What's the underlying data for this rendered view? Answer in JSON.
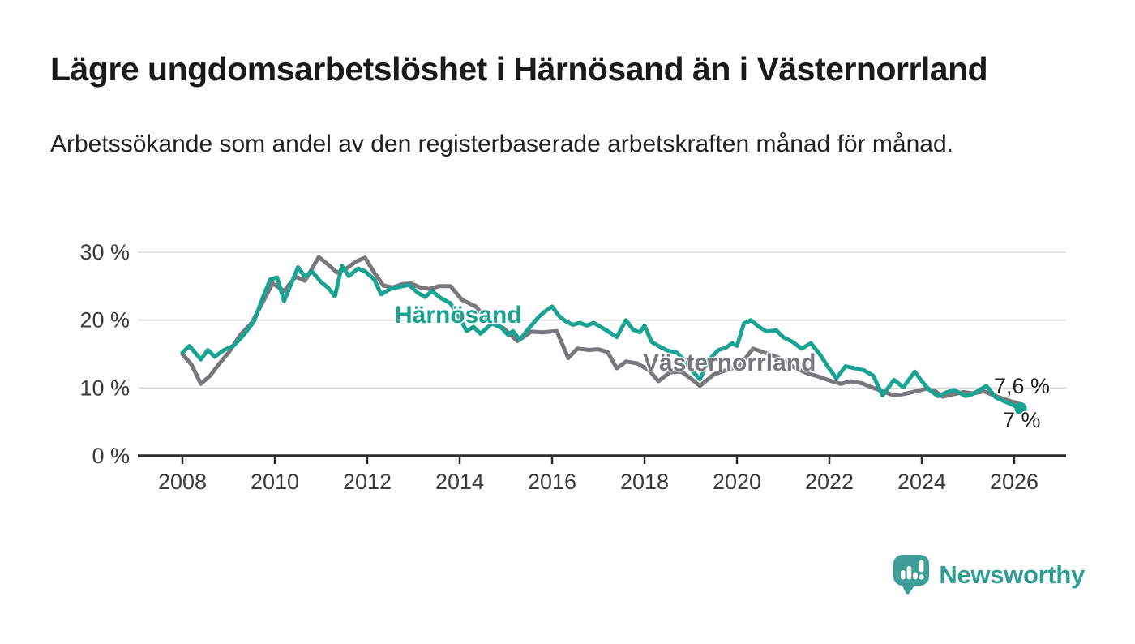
{
  "title": "Lägre ungdomsarbetslöshet i Härnösand än i Västernorrland",
  "subtitle": "Arbetssökande som andel av den registerbaserade arbetskraften månad för månad.",
  "branding": {
    "name": "Newsworthy"
  },
  "colors": {
    "harnosand": "#1aa392",
    "vasternorrland": "#78787c",
    "axis": "#2d2d2d",
    "grid": "#d8d8d8",
    "tick_text": "#3a3a3a",
    "logo_bubble": "#3f9e97",
    "logo_text": "#2d9c92"
  },
  "chart_data": {
    "type": "line",
    "title": "Lägre ungdomsarbetslöshet i Härnösand än i Västernorrland",
    "subtitle": "Arbetssökande som andel av den registerbaserade arbetskraften månad för månad.",
    "unit": "%",
    "grid": "horizontal",
    "legend_position": "inline-labels",
    "x_range": [
      2007.05,
      2027.1
    ],
    "y_range": [
      0,
      30
    ],
    "x_ticks": [
      "2008",
      "2010",
      "2012",
      "2014",
      "2016",
      "2018",
      "2020",
      "2022",
      "2024",
      "2026"
    ],
    "x_tick_values": [
      2008,
      2010,
      2012,
      2014,
      2016,
      2018,
      2020,
      2022,
      2024,
      2026
    ],
    "y_ticks": [
      "0 %",
      "10 %",
      "20 %",
      "30 %"
    ],
    "y_tick_values": [
      0,
      10,
      20,
      30
    ],
    "series": [
      {
        "name": "Härnösand",
        "label": "Härnösand",
        "color": "#1aa392",
        "end_label": "7 %",
        "end_value": 7.0,
        "end_dot": true,
        "points": [
          [
            2008.0,
            15.2
          ],
          [
            2008.15,
            16.2
          ],
          [
            2008.4,
            14.2
          ],
          [
            2008.55,
            15.6
          ],
          [
            2008.7,
            14.6
          ],
          [
            2008.9,
            15.6
          ],
          [
            2009.1,
            16.2
          ],
          [
            2009.3,
            17.6
          ],
          [
            2009.55,
            19.8
          ],
          [
            2009.75,
            23.5
          ],
          [
            2009.9,
            26.0
          ],
          [
            2010.05,
            26.3
          ],
          [
            2010.2,
            22.8
          ],
          [
            2010.5,
            27.8
          ],
          [
            2010.65,
            26.4
          ],
          [
            2010.8,
            27.2
          ],
          [
            2011.0,
            25.6
          ],
          [
            2011.15,
            24.8
          ],
          [
            2011.3,
            23.5
          ],
          [
            2011.45,
            28.0
          ],
          [
            2011.6,
            26.5
          ],
          [
            2011.8,
            27.6
          ],
          [
            2011.95,
            27.2
          ],
          [
            2012.15,
            26.0
          ],
          [
            2012.3,
            23.8
          ],
          [
            2012.5,
            24.6
          ],
          [
            2012.7,
            24.9
          ],
          [
            2012.9,
            25.2
          ],
          [
            2013.1,
            24.0
          ],
          [
            2013.25,
            23.4
          ],
          [
            2013.4,
            24.3
          ],
          [
            2013.6,
            23.2
          ],
          [
            2013.8,
            22.5
          ],
          [
            2014.0,
            20.3
          ],
          [
            2014.15,
            18.4
          ],
          [
            2014.3,
            19.0
          ],
          [
            2014.45,
            18.0
          ],
          [
            2014.7,
            19.5
          ],
          [
            2014.9,
            18.9
          ],
          [
            2015.05,
            17.8
          ],
          [
            2015.15,
            18.4
          ],
          [
            2015.3,
            17.1
          ],
          [
            2015.5,
            18.8
          ],
          [
            2015.7,
            20.4
          ],
          [
            2015.85,
            21.3
          ],
          [
            2016.0,
            22.0
          ],
          [
            2016.15,
            20.6
          ],
          [
            2016.3,
            19.8
          ],
          [
            2016.45,
            19.3
          ],
          [
            2016.6,
            19.6
          ],
          [
            2016.75,
            19.2
          ],
          [
            2016.9,
            19.6
          ],
          [
            2017.05,
            19.0
          ],
          [
            2017.2,
            18.4
          ],
          [
            2017.4,
            17.5
          ],
          [
            2017.6,
            20.0
          ],
          [
            2017.75,
            18.6
          ],
          [
            2017.9,
            18.2
          ],
          [
            2018.0,
            19.2
          ],
          [
            2018.15,
            16.8
          ],
          [
            2018.3,
            16.2
          ],
          [
            2018.5,
            15.5
          ],
          [
            2018.7,
            15.2
          ],
          [
            2018.9,
            13.8
          ],
          [
            2019.05,
            12.4
          ],
          [
            2019.2,
            11.3
          ],
          [
            2019.4,
            14.2
          ],
          [
            2019.6,
            15.6
          ],
          [
            2019.75,
            15.9
          ],
          [
            2019.9,
            16.6
          ],
          [
            2020.0,
            16.2
          ],
          [
            2020.15,
            19.5
          ],
          [
            2020.3,
            20.0
          ],
          [
            2020.5,
            18.9
          ],
          [
            2020.65,
            18.3
          ],
          [
            2020.85,
            18.5
          ],
          [
            2021.0,
            17.5
          ],
          [
            2021.2,
            16.8
          ],
          [
            2021.4,
            15.8
          ],
          [
            2021.6,
            16.6
          ],
          [
            2021.8,
            14.9
          ],
          [
            2021.95,
            13.3
          ],
          [
            2022.15,
            11.4
          ],
          [
            2022.35,
            13.2
          ],
          [
            2022.55,
            12.9
          ],
          [
            2022.75,
            12.6
          ],
          [
            2022.95,
            11.8
          ],
          [
            2023.15,
            8.9
          ],
          [
            2023.4,
            11.2
          ],
          [
            2023.6,
            10.1
          ],
          [
            2023.85,
            12.4
          ],
          [
            2024.0,
            11.0
          ],
          [
            2024.15,
            9.8
          ],
          [
            2024.35,
            8.8
          ],
          [
            2024.55,
            9.4
          ],
          [
            2024.7,
            9.7
          ],
          [
            2024.95,
            8.8
          ],
          [
            2025.1,
            9.1
          ],
          [
            2025.4,
            10.3
          ],
          [
            2025.6,
            8.6
          ],
          [
            2025.8,
            8.0
          ],
          [
            2026.0,
            7.4
          ],
          [
            2026.14,
            7.0
          ]
        ]
      },
      {
        "name": "Västernorrland",
        "label": "Västernorrland",
        "color": "#78787c",
        "end_label": "7,6 %",
        "end_value": 7.6,
        "end_dot": false,
        "points": [
          [
            2008.0,
            15.0
          ],
          [
            2008.2,
            13.4
          ],
          [
            2008.4,
            10.6
          ],
          [
            2008.6,
            11.8
          ],
          [
            2008.8,
            13.6
          ],
          [
            2009.0,
            15.2
          ],
          [
            2009.25,
            17.8
          ],
          [
            2009.5,
            19.6
          ],
          [
            2009.75,
            22.8
          ],
          [
            2009.95,
            25.4
          ],
          [
            2010.2,
            24.3
          ],
          [
            2010.45,
            26.4
          ],
          [
            2010.65,
            25.8
          ],
          [
            2010.95,
            29.3
          ],
          [
            2011.15,
            28.2
          ],
          [
            2011.35,
            27.0
          ],
          [
            2011.55,
            27.6
          ],
          [
            2011.75,
            28.6
          ],
          [
            2011.95,
            29.2
          ],
          [
            2012.15,
            27.0
          ],
          [
            2012.35,
            25.1
          ],
          [
            2012.55,
            24.8
          ],
          [
            2012.75,
            25.3
          ],
          [
            2012.95,
            25.4
          ],
          [
            2013.15,
            24.8
          ],
          [
            2013.35,
            24.6
          ],
          [
            2013.55,
            25.0
          ],
          [
            2013.8,
            25.0
          ],
          [
            2014.05,
            23.0
          ],
          [
            2014.35,
            22.0
          ],
          [
            2014.6,
            20.0
          ],
          [
            2014.95,
            18.8
          ],
          [
            2015.25,
            16.9
          ],
          [
            2015.55,
            18.3
          ],
          [
            2015.8,
            18.2
          ],
          [
            2016.1,
            18.4
          ],
          [
            2016.35,
            14.4
          ],
          [
            2016.55,
            15.8
          ],
          [
            2016.8,
            15.6
          ],
          [
            2017.0,
            15.7
          ],
          [
            2017.2,
            15.3
          ],
          [
            2017.4,
            12.9
          ],
          [
            2017.6,
            13.9
          ],
          [
            2017.85,
            13.6
          ],
          [
            2018.1,
            12.6
          ],
          [
            2018.3,
            11.0
          ],
          [
            2018.55,
            12.3
          ],
          [
            2018.8,
            12.4
          ],
          [
            2019.0,
            11.4
          ],
          [
            2019.2,
            10.3
          ],
          [
            2019.5,
            12.0
          ],
          [
            2019.8,
            12.7
          ],
          [
            2020.05,
            13.2
          ],
          [
            2020.35,
            15.8
          ],
          [
            2020.6,
            15.2
          ],
          [
            2020.9,
            14.5
          ],
          [
            2021.2,
            13.2
          ],
          [
            2021.5,
            12.2
          ],
          [
            2021.8,
            11.6
          ],
          [
            2022.05,
            11.0
          ],
          [
            2022.25,
            10.6
          ],
          [
            2022.45,
            11.0
          ],
          [
            2022.7,
            10.7
          ],
          [
            2022.95,
            10.0
          ],
          [
            2023.2,
            9.4
          ],
          [
            2023.4,
            8.9
          ],
          [
            2023.6,
            9.1
          ],
          [
            2023.8,
            9.4
          ],
          [
            2024.1,
            9.9
          ],
          [
            2024.3,
            9.5
          ],
          [
            2024.45,
            8.7
          ],
          [
            2024.7,
            9.1
          ],
          [
            2024.9,
            9.4
          ],
          [
            2025.1,
            9.2
          ],
          [
            2025.35,
            9.5
          ],
          [
            2025.6,
            8.8
          ],
          [
            2025.85,
            8.2
          ],
          [
            2026.05,
            7.8
          ],
          [
            2026.14,
            7.6
          ]
        ]
      }
    ]
  }
}
